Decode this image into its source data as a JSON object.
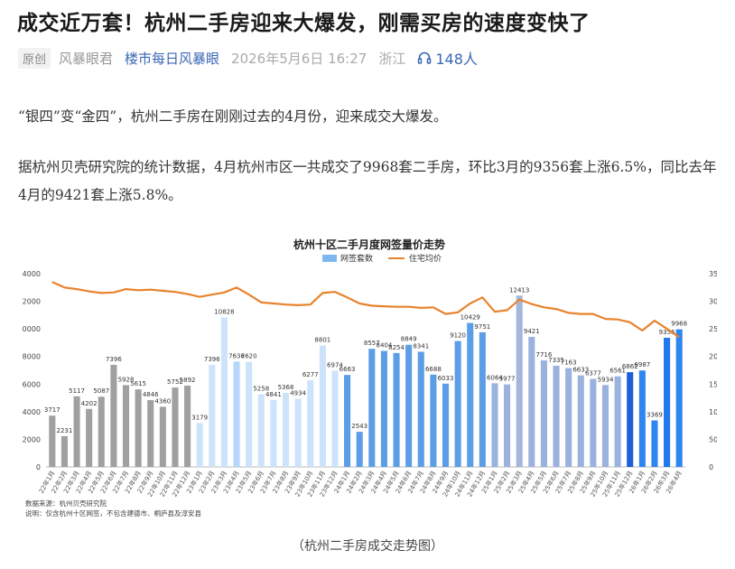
{
  "article": {
    "title": "成交近万套！杭州二手房迎来大爆发，刚需买房的速度变快了",
    "badge": "原创",
    "author": "风暴眼君",
    "account": "楼市每日风暴眼",
    "date": "2026年5月6日 16:27",
    "region": "浙江",
    "listen_count": "148人",
    "paragraph1": "“银四”变“金四”，杭州二手房在刚刚过去的4月份，迎来成交大爆发。",
    "paragraph2": "据杭州贝壳研究院的统计数据，4月杭州市区一共成交了9968套二手房，环比3月的9356套上涨6.5%，同比去年4月的9421套上涨5.8%。",
    "caption": "（杭州二手房成交走势图）"
  },
  "chart_data": {
    "type": "bar",
    "title": "杭州十区二手月度网签量价走势",
    "categories": [
      "22年1月",
      "22年2月",
      "22年3月",
      "22年4月",
      "22年5月",
      "22年6月",
      "22年7月",
      "22年8月",
      "22年9月",
      "22年10月",
      "22年11月",
      "22年12月",
      "23年1月",
      "23年2月",
      "23年3月",
      "23年4月",
      "23年5月",
      "23年6月",
      "23年7月",
      "23年8月",
      "23年9月",
      "23年10月",
      "23年11月",
      "23年12月",
      "24年1月",
      "24年2月",
      "24年3月",
      "24年4月",
      "24年5月",
      "24年6月",
      "24年7月",
      "24年8月",
      "24年9月",
      "24年10月",
      "24年11月",
      "24年12月",
      "25年1月",
      "25年2月",
      "25年3月",
      "25年4月",
      "25年5月",
      "25年6月",
      "25年7月",
      "25年8月",
      "25年9月",
      "25年10月",
      "25年11月",
      "25年12月",
      "26年1月",
      "26年2月",
      "26年3月",
      "26年4月"
    ],
    "series": [
      {
        "name": "网签套数",
        "axis": "left",
        "type": "bar",
        "values": [
          3717,
          2231,
          5117,
          4202,
          5087,
          7396,
          5928,
          5615,
          4846,
          4360,
          5752,
          5892,
          3179,
          7396,
          10828,
          7636,
          7620,
          5258,
          4841,
          5368,
          4934,
          6277,
          8801,
          6974,
          6663,
          2543,
          8557,
          8404,
          8254,
          8849,
          8341,
          6688,
          6033,
          9120,
          10429,
          9751,
          6064,
          5977,
          12413,
          9421,
          7716,
          7335,
          7163,
          6633,
          6377,
          5934,
          6561,
          6862,
          6987,
          3369,
          9356,
          9968
        ]
      },
      {
        "name": "住宅均价",
        "axis": "right",
        "type": "line",
        "values": [
          33500,
          32500,
          32200,
          31800,
          31500,
          31600,
          32200,
          32000,
          32100,
          31900,
          31700,
          31300,
          30800,
          31200,
          31600,
          32500,
          31200,
          29800,
          29600,
          29400,
          29300,
          29400,
          31500,
          31700,
          30700,
          29600,
          29200,
          29100,
          29000,
          29000,
          28800,
          28900,
          27700,
          28000,
          29600,
          30700,
          28100,
          28400,
          30300,
          29500,
          28900,
          28600,
          27900,
          27700,
          27700,
          26800,
          26700,
          26200,
          24700,
          26500,
          25000,
          23500
        ]
      }
    ],
    "ylim_left": [
      0,
      14000
    ],
    "ylim_right": [
      0,
      35000
    ],
    "yticks_left": [
      "0",
      "2000",
      "4000",
      "6000",
      "8000",
      "10000",
      "12000",
      "14000"
    ],
    "yticks_right": [
      "0",
      "5000",
      "10000",
      "15000",
      "20000",
      "25000",
      "30000",
      "35000"
    ],
    "legend_position": "top",
    "bar_colors": {
      "2022": "#a0a0a0",
      "2023": "#cce3fb",
      "2024": "#5b9ee6",
      "2025": "#9ab2dd",
      "2026": "#2f86f0",
      "highlight_23年4月": "#b6d7fb",
      "highlight_25年3月": "#a3b7db",
      "highlight_26年3月": "#1f78ec",
      "highlight_25年12月": "#1c5fd6"
    },
    "line_color": "#e8832b",
    "legend_bar_color": "#7fb7f0",
    "source_note": "数据来源：杭州贝壳研究院",
    "explain_note": "说明：仅含杭州十区网签，不包含建德市、桐庐县及淳安县"
  }
}
